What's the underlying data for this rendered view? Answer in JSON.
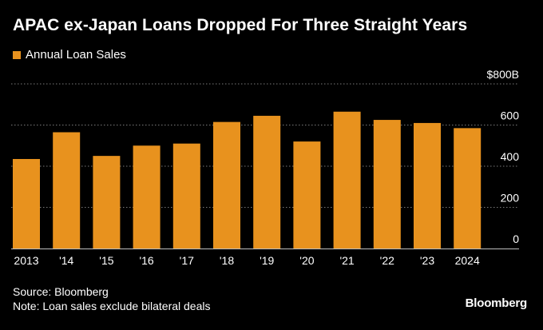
{
  "header": {
    "title": "APAC ex-Japan Loans Dropped For Three Straight Years"
  },
  "legend": {
    "label": "Annual Loan Sales"
  },
  "footer": {
    "source": "Source: Bloomberg",
    "note": "Note: Loan sales exclude bilateral deals",
    "brand": "Bloomberg"
  },
  "colors": {
    "bar": "#E8921E",
    "background": "#000000",
    "grid": "#7a7a7a",
    "text": "#ffffff"
  },
  "chart_data": {
    "type": "bar",
    "title": "APAC ex-Japan Loans Dropped For Three Straight Years",
    "xlabel": "",
    "ylabel": "",
    "series": [
      {
        "name": "Annual Loan Sales",
        "values": [
          435,
          565,
          450,
          500,
          510,
          615,
          645,
          520,
          665,
          625,
          610,
          585
        ]
      }
    ],
    "categories": [
      "2013",
      "'14",
      "'15",
      "'16",
      "'17",
      "'18",
      "'19",
      "'20",
      "'21",
      "'22",
      "'23",
      "2024"
    ],
    "ylim": [
      0,
      800
    ],
    "yticks": [
      0,
      200,
      400,
      600,
      800
    ],
    "ytick_labels": [
      "0",
      "200",
      "400",
      "600",
      "$800B"
    ],
    "grid": true,
    "legend_position": "top-left"
  }
}
